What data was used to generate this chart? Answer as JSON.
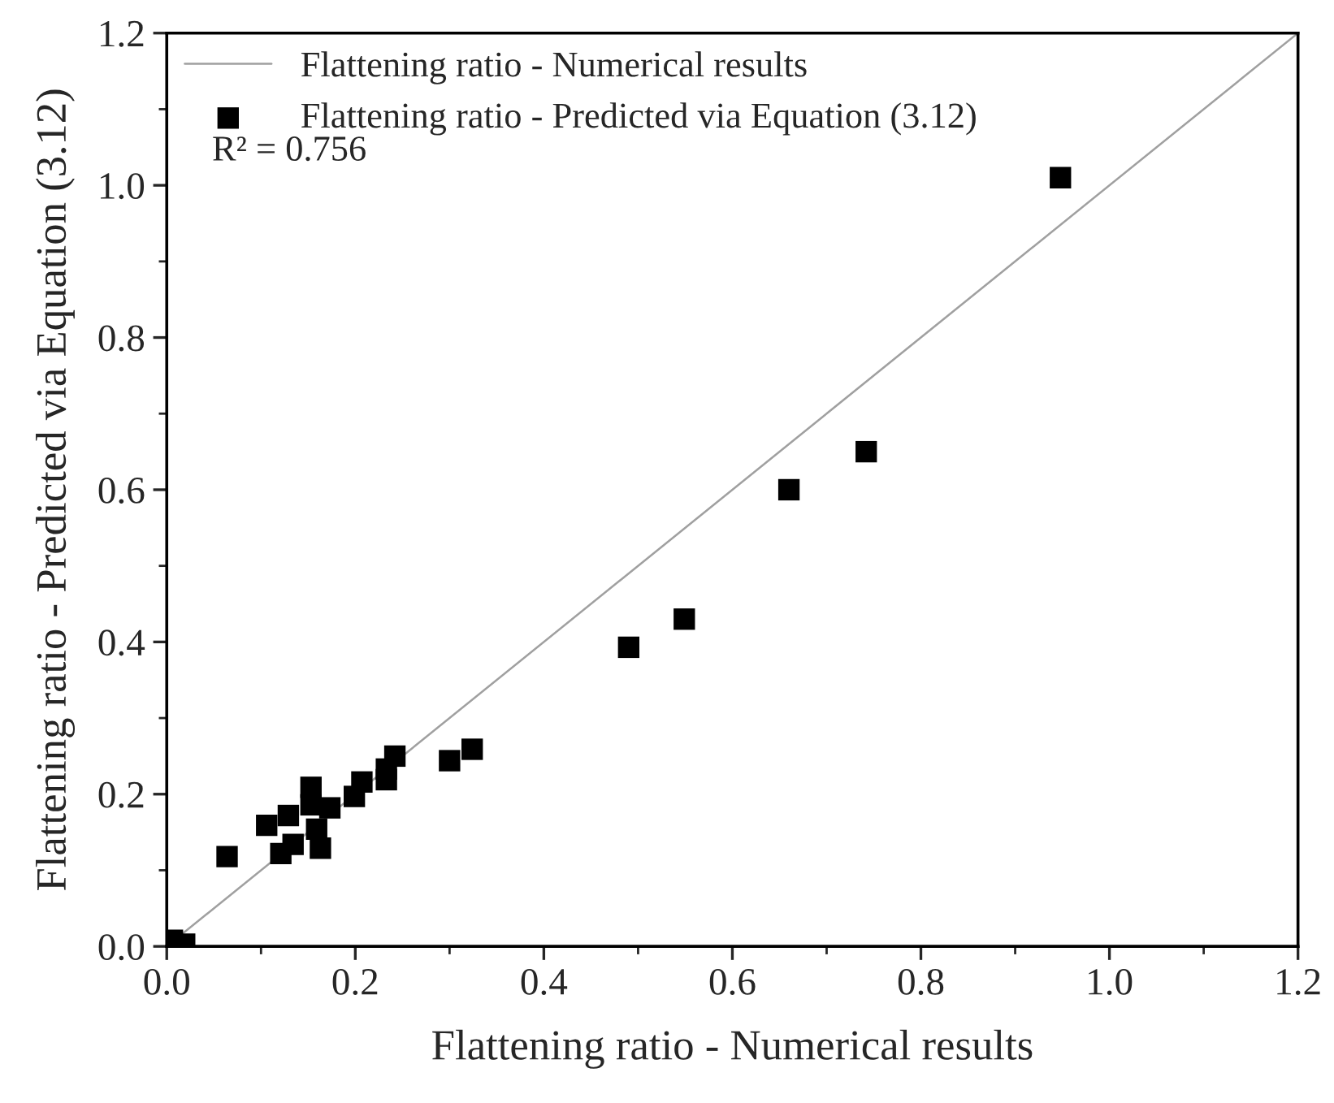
{
  "chart_data": {
    "type": "scatter",
    "xlabel": "Flattening ratio - Numerical results",
    "ylabel": "Flattening ratio - Predicted via Equation (3.12)",
    "annotations": [
      "R² = 0.756"
    ],
    "series": [
      {
        "name": "Flattening ratio - Numerical results",
        "type": "line",
        "color": "#a0a0a0",
        "marker": "none",
        "line_style": "solid",
        "x": [
          0,
          1.2
        ],
        "values": [
          0,
          1.2
        ]
      },
      {
        "name": "Flattening ratio - Predicted via Equation (3.12)",
        "color": "#000000",
        "marker": "square",
        "x": [
          0.948,
          0.742,
          0.66,
          0.549,
          0.49,
          0.324,
          0.3,
          0.242,
          0.233,
          0.233,
          0.207,
          0.199,
          0.173,
          0.163,
          0.159,
          0.153,
          0.153,
          0.134,
          0.121,
          0.129,
          0.106,
          0.064,
          0.006,
          0.019
        ],
        "values": [
          1.01,
          0.65,
          0.6,
          0.43,
          0.393,
          0.259,
          0.244,
          0.25,
          0.233,
          0.219,
          0.216,
          0.197,
          0.182,
          0.129,
          0.154,
          0.186,
          0.209,
          0.134,
          0.122,
          0.172,
          0.159,
          0.118,
          0.008,
          0.003
        ]
      }
    ],
    "xlim": [
      0,
      1.2
    ],
    "ylim": [
      0,
      1.2
    ],
    "xticks": [
      {
        "value": 0,
        "label": "0.0"
      },
      0.2,
      0.4,
      0.6,
      0.8,
      {
        "value": 1,
        "label": "1.0"
      },
      1.2
    ],
    "yticks": [
      {
        "value": 0,
        "label": "0.0"
      },
      0.2,
      0.4,
      0.6,
      0.8,
      {
        "value": 1,
        "label": "1.0"
      },
      1.2
    ],
    "grid": false,
    "legend": "top left"
  }
}
